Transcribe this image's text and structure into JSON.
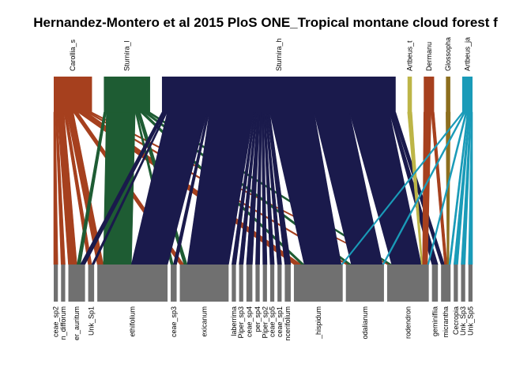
{
  "chart_data": {
    "type": "bipartite-web",
    "title": "Hernandez-Montero et al 2015 PloS ONE_Tropical montane cloud forest f",
    "higher_level": [
      {
        "label": "Carollia_s",
        "color": "#A6401E",
        "weight": 9
      },
      {
        "label": "Sturnira_l",
        "color": "#1E5C33",
        "weight": 11
      },
      {
        "label": "Sturnira_h",
        "color": "#1A1A4C",
        "weight": 58
      },
      {
        "label": "Artbeus_t",
        "color": "#BDB547",
        "weight": 0.5
      },
      {
        "label": "Dermanu",
        "color": "#A6401E",
        "weight": 2
      },
      {
        "label": "Glossopha",
        "color": "#8C6E1E",
        "weight": 0.5
      },
      {
        "label": "Artbeus_ja",
        "color": "#1A9BB8",
        "weight": 2
      }
    ],
    "lower_level": [
      {
        "label": "ceae_sp2",
        "weight": 0.5
      },
      {
        "label": "n_difforum",
        "weight": 0.5
      },
      {
        "label": "er_auritum",
        "weight": 4
      },
      {
        "label": "Unk_Sp1",
        "weight": 1
      },
      {
        "label": "ethifolium",
        "weight": 19
      },
      {
        "label": "ceae_sp3",
        "weight": 1
      },
      {
        "label": "exicanum",
        "weight": 13
      },
      {
        "label": "laberrima",
        "weight": 0.5
      },
      {
        "label": "Piper_sp3",
        "weight": 0.5
      },
      {
        "label": "ceae_sp4",
        "weight": 1
      },
      {
        "label": "per_sp4",
        "weight": 0.5
      },
      {
        "label": "Piper_sp2",
        "weight": 0.5
      },
      {
        "label": "ceae_sp5",
        "weight": 0.5
      },
      {
        "label": "ceae_sp1",
        "weight": 0.5
      },
      {
        "label": "ncerifolium",
        "weight": 1
      },
      {
        "label": "_hispidum",
        "weight": 13
      },
      {
        "label": "odalianum",
        "weight": 10
      },
      {
        "label": "rodendron",
        "weight": 11
      },
      {
        "label": "geminiflia",
        "weight": 1
      },
      {
        "label": "micrantha",
        "weight": 2
      },
      {
        "label": "Cecropia",
        "weight": 0.5
      },
      {
        "label": "Unk_Sp3",
        "weight": 0.5
      },
      {
        "label": "Unk_Sp5",
        "weight": 0.5
      }
    ],
    "links": [
      {
        "from": 0,
        "to": 2,
        "w": 1.5
      },
      {
        "from": 0,
        "to": 3,
        "w": 0.6
      },
      {
        "from": 0,
        "to": 4,
        "w": 1.5
      },
      {
        "from": 0,
        "to": 6,
        "w": 1
      },
      {
        "from": 0,
        "to": 15,
        "w": 2
      },
      {
        "from": 0,
        "to": 16,
        "w": 0.6
      },
      {
        "from": 0,
        "to": 17,
        "w": 0.6
      },
      {
        "from": 0,
        "to": 0,
        "w": 0.4
      },
      {
        "from": 0,
        "to": 1,
        "w": 0.4
      },
      {
        "from": 1,
        "to": 4,
        "w": 7
      },
      {
        "from": 1,
        "to": 2,
        "w": 0.6
      },
      {
        "from": 1,
        "to": 6,
        "w": 0.8
      },
      {
        "from": 1,
        "to": 15,
        "w": 0.8
      },
      {
        "from": 1,
        "to": 16,
        "w": 0.8
      },
      {
        "from": 1,
        "to": 17,
        "w": 0.8
      },
      {
        "from": 1,
        "to": 5,
        "w": 0.4
      },
      {
        "from": 2,
        "to": 4,
        "w": 9
      },
      {
        "from": 2,
        "to": 6,
        "w": 10
      },
      {
        "from": 2,
        "to": 15,
        "w": 10
      },
      {
        "from": 2,
        "to": 16,
        "w": 8
      },
      {
        "from": 2,
        "to": 17,
        "w": 9
      },
      {
        "from": 2,
        "to": 2,
        "w": 0.8
      },
      {
        "from": 2,
        "to": 3,
        "w": 0.4
      },
      {
        "from": 2,
        "to": 5,
        "w": 0.5
      },
      {
        "from": 2,
        "to": 7,
        "w": 0.4
      },
      {
        "from": 2,
        "to": 8,
        "w": 0.4
      },
      {
        "from": 2,
        "to": 9,
        "w": 0.6
      },
      {
        "from": 2,
        "to": 10,
        "w": 0.4
      },
      {
        "from": 2,
        "to": 11,
        "w": 0.4
      },
      {
        "from": 2,
        "to": 12,
        "w": 0.4
      },
      {
        "from": 2,
        "to": 13,
        "w": 0.4
      },
      {
        "from": 2,
        "to": 14,
        "w": 0.6
      },
      {
        "from": 2,
        "to": 18,
        "w": 0.6
      },
      {
        "from": 2,
        "to": 19,
        "w": 0.8
      },
      {
        "from": 3,
        "to": 17,
        "w": 0.4
      },
      {
        "from": 4,
        "to": 17,
        "w": 1.5
      },
      {
        "from": 4,
        "to": 19,
        "w": 0.6
      },
      {
        "from": 5,
        "to": 19,
        "w": 0.4
      },
      {
        "from": 6,
        "to": 15,
        "w": 0.4
      },
      {
        "from": 6,
        "to": 16,
        "w": 0.4
      },
      {
        "from": 6,
        "to": 17,
        "w": 0.4
      },
      {
        "from": 6,
        "to": 19,
        "w": 0.4
      },
      {
        "from": 6,
        "to": 20,
        "w": 0.3
      },
      {
        "from": 6,
        "to": 21,
        "w": 0.3
      },
      {
        "from": 6,
        "to": 22,
        "w": 0.3
      }
    ]
  }
}
